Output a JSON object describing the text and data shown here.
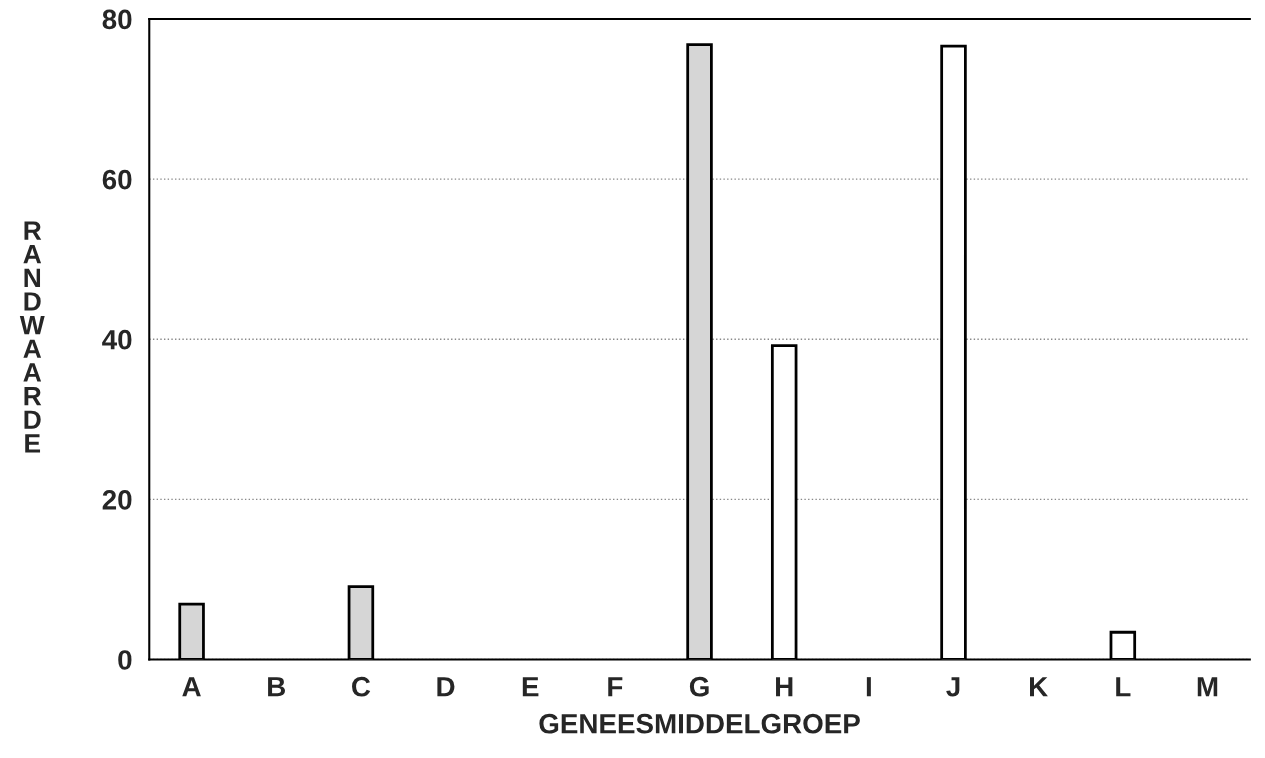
{
  "chart_data": {
    "type": "bar",
    "xlabel": "GENEESMIDDELGROEP",
    "ylabel": "R\nA\nN\nD\nW\nA\nA\nR\nD\nE",
    "categories": [
      "A",
      "B",
      "C",
      "D",
      "E",
      "F",
      "G",
      "H",
      "I",
      "J",
      "K",
      "L",
      "M"
    ],
    "values": [
      6.9,
      0,
      9.1,
      0,
      0,
      0,
      76.8,
      39.2,
      0,
      76.6,
      0,
      3.4,
      0
    ],
    "colors": [
      "#d6d6d6",
      "#ffffff",
      "#d6d6d6",
      "#ffffff",
      "#ffffff",
      "#ffffff",
      "#d6d6d6",
      "#ffffff",
      "#ffffff",
      "#ffffff",
      "#ffffff",
      "#ffffff",
      "#ffffff"
    ],
    "ylim": [
      0,
      80
    ],
    "yticks": [
      0,
      20,
      40,
      60,
      80
    ],
    "grid": "y"
  }
}
